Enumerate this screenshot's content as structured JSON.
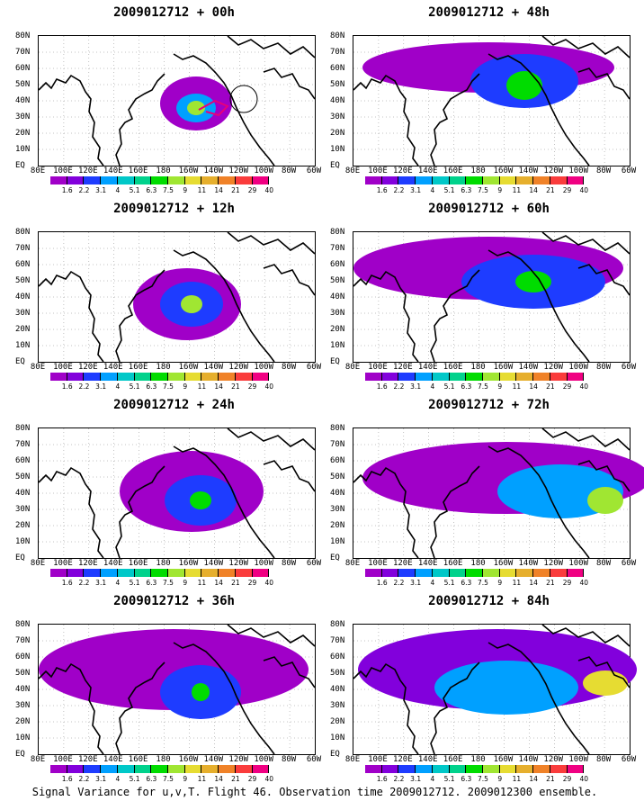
{
  "panels": [
    {
      "title": "2009012712 + 00h"
    },
    {
      "title": "2009012712 + 48h"
    },
    {
      "title": "2009012712 + 12h"
    },
    {
      "title": "2009012712 + 60h"
    },
    {
      "title": "2009012712 + 24h"
    },
    {
      "title": "2009012712 + 72h"
    },
    {
      "title": "2009012712 + 36h"
    },
    {
      "title": "2009012712 + 84h"
    }
  ],
  "lat_labels": [
    "80N",
    "70N",
    "60N",
    "50N",
    "40N",
    "30N",
    "20N",
    "10N",
    "EQ"
  ],
  "lon_labels": [
    "80E",
    "100E",
    "120E",
    "140E",
    "160E",
    "180",
    "160W",
    "140W",
    "120W",
    "100W",
    "80W",
    "60W"
  ],
  "colorbar": {
    "ticks": [
      "1.6",
      "2.2",
      "3.1",
      "4",
      "5.1",
      "6.3",
      "7.5",
      "9",
      "11",
      "14",
      "21",
      "29",
      "40"
    ],
    "colors": [
      "#a000c8",
      "#8200dc",
      "#1e3cff",
      "#00a0ff",
      "#00c8c8",
      "#00d28c",
      "#00dc00",
      "#a0e632",
      "#e6dc32",
      "#e6af2d",
      "#f08228",
      "#fa3c3c",
      "#f00082"
    ]
  },
  "footer": "Signal Variance for u,v,T. Flight 46. Observation time 2009012712. 2009012300 ensemble."
}
